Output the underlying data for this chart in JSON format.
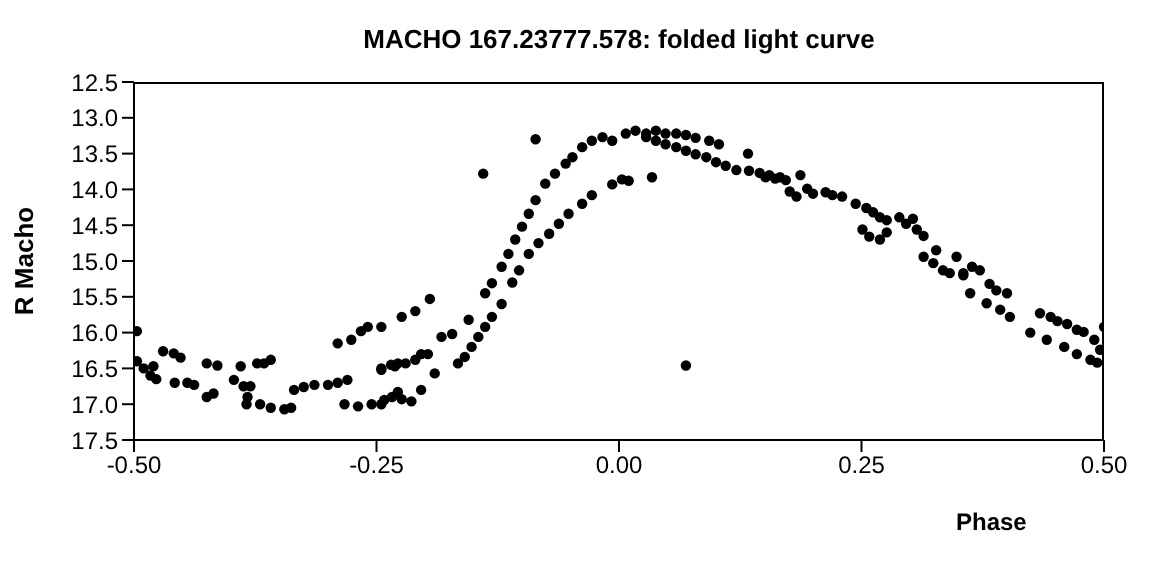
{
  "chart_data": {
    "type": "scatter",
    "title": "MACHO 167.23777.578: folded light curve",
    "xlabel": "Phase",
    "ylabel": "R Macho",
    "x": [
      -0.497,
      -0.497,
      -0.49,
      -0.483,
      -0.477,
      -0.48,
      -0.47,
      -0.459,
      -0.452,
      -0.458,
      -0.445,
      -0.438,
      -0.425,
      -0.425,
      -0.414,
      -0.418,
      -0.397,
      -0.387,
      -0.39,
      -0.373,
      -0.366,
      -0.359,
      -0.38,
      -0.383,
      -0.384,
      -0.37,
      -0.359,
      -0.345,
      -0.335,
      -0.325,
      -0.314,
      -0.338,
      -0.29,
      -0.276,
      -0.266,
      -0.259,
      -0.3,
      -0.29,
      -0.28,
      -0.283,
      -0.269,
      -0.255,
      -0.242,
      -0.228,
      -0.245,
      -0.235,
      -0.228,
      -0.245,
      -0.234,
      -0.224,
      -0.214,
      -0.204,
      -0.19,
      -0.166,
      -0.159,
      -0.152,
      -0.145,
      -0.138,
      -0.131,
      -0.121,
      -0.11,
      -0.103,
      -0.093,
      -0.083,
      -0.072,
      -0.062,
      -0.052,
      -0.038,
      -0.028,
      -0.007,
      0.003,
      0.01,
      -0.245,
      -0.231,
      -0.22,
      -0.21,
      -0.204,
      -0.197,
      -0.183,
      -0.172,
      -0.155,
      -0.138,
      -0.131,
      -0.121,
      -0.114,
      -0.107,
      -0.1,
      -0.093,
      -0.086,
      -0.076,
      -0.066,
      -0.055,
      -0.048,
      -0.038,
      -0.028,
      -0.017,
      -0.007,
      0.007,
      0.017,
      0.028,
      0.038,
      0.048,
      0.059,
      0.069,
      0.079,
      0.093,
      0.103,
      0.028,
      0.038,
      0.048,
      0.059,
      0.069,
      0.079,
      0.09,
      0.1,
      0.11,
      0.121,
      0.134,
      0.145,
      0.155,
      0.166,
      -0.086,
      -0.14,
      0.069,
      -0.195,
      -0.21,
      -0.224,
      -0.245,
      0.034,
      0.133,
      0.151,
      0.161,
      0.172,
      0.176,
      0.183,
      0.187,
      0.194,
      0.2,
      0.213,
      0.22,
      0.23,
      0.244,
      0.255,
      0.262,
      0.269,
      0.276,
      0.251,
      0.258,
      0.269,
      0.276,
      0.289,
      0.296,
      0.303,
      0.307,
      0.314,
      0.314,
      0.327,
      0.324,
      0.334,
      0.341,
      0.348,
      0.355,
      0.362,
      0.355,
      0.364,
      0.372,
      0.379,
      0.382,
      0.389,
      0.393,
      0.4,
      0.403,
      0.424,
      0.434,
      0.441,
      0.445,
      0.452,
      0.459,
      0.462,
      0.472,
      0.472,
      0.479,
      0.486,
      0.49,
      0.493,
      0.496,
      0.5
    ],
    "values": [
      15.98,
      16.4,
      16.5,
      16.6,
      16.65,
      16.47,
      16.26,
      16.29,
      16.35,
      16.7,
      16.7,
      16.73,
      16.43,
      16.9,
      16.46,
      16.85,
      16.66,
      16.75,
      16.47,
      16.43,
      16.43,
      16.38,
      16.75,
      16.9,
      17.0,
      17.0,
      17.05,
      17.07,
      16.8,
      16.76,
      16.73,
      17.05,
      16.15,
      16.1,
      15.98,
      15.92,
      16.73,
      16.7,
      16.66,
      17.0,
      17.03,
      17.0,
      16.94,
      16.83,
      16.5,
      16.45,
      16.43,
      17.0,
      16.9,
      16.93,
      16.96,
      16.8,
      16.57,
      16.43,
      16.34,
      16.2,
      16.06,
      15.92,
      15.78,
      15.6,
      15.3,
      15.13,
      14.9,
      14.75,
      14.62,
      14.48,
      14.34,
      14.2,
      14.08,
      13.93,
      13.86,
      13.88,
      16.52,
      16.47,
      16.43,
      16.38,
      16.3,
      16.3,
      16.06,
      16.02,
      15.82,
      15.45,
      15.31,
      15.08,
      14.9,
      14.7,
      14.52,
      14.34,
      14.15,
      13.92,
      13.78,
      13.64,
      13.55,
      13.41,
      13.32,
      13.27,
      13.32,
      13.22,
      13.18,
      13.22,
      13.18,
      13.22,
      13.22,
      13.24,
      13.28,
      13.32,
      13.37,
      13.27,
      13.32,
      13.37,
      13.41,
      13.46,
      13.51,
      13.55,
      13.62,
      13.67,
      13.73,
      13.74,
      13.77,
      13.8,
      13.83,
      13.3,
      13.78,
      16.46,
      15.53,
      15.7,
      15.78,
      15.92,
      13.83,
      13.5,
      13.83,
      13.85,
      13.87,
      14.03,
      14.1,
      13.8,
      13.99,
      14.06,
      14.04,
      14.08,
      14.1,
      14.2,
      14.26,
      14.32,
      14.39,
      14.43,
      14.56,
      14.66,
      14.7,
      14.6,
      14.39,
      14.48,
      14.41,
      14.56,
      14.65,
      14.94,
      14.85,
      15.03,
      15.13,
      15.17,
      14.94,
      15.2,
      15.45,
      15.17,
      15.08,
      15.13,
      15.59,
      15.32,
      15.41,
      15.68,
      15.45,
      15.78,
      16.0,
      15.73,
      16.1,
      15.78,
      15.84,
      16.2,
      15.88,
      15.96,
      16.3,
      15.99,
      16.38,
      16.1,
      16.42,
      16.24,
      15.92
    ],
    "color": "#000000",
    "marker": "circle",
    "xlim": [
      -0.5,
      0.5
    ],
    "xticks": [
      {
        "value": -0.5,
        "label": "-0.50"
      },
      {
        "value": -0.25,
        "label": "-0.25"
      },
      {
        "value": 0,
        "label": "0.00"
      },
      {
        "value": 0.25,
        "label": "0.25"
      },
      {
        "value": 0.5,
        "label": "0.50"
      }
    ],
    "ylim": [
      17.5,
      12.5
    ],
    "yticks": [
      {
        "value": 12.5,
        "label": "12.5"
      },
      {
        "value": 13,
        "label": "13.0"
      },
      {
        "value": 13.5,
        "label": "13.5"
      },
      {
        "value": 14,
        "label": "14.0"
      },
      {
        "value": 14.5,
        "label": "14.5"
      },
      {
        "value": 15,
        "label": "15.0"
      },
      {
        "value": 15.5,
        "label": "15.5"
      },
      {
        "value": 16,
        "label": "16.0"
      },
      {
        "value": 16.5,
        "label": "16.5"
      },
      {
        "value": 17,
        "label": "17.0"
      },
      {
        "value": 17.5,
        "label": "17.5"
      }
    ],
    "grid": false,
    "legend": false
  }
}
